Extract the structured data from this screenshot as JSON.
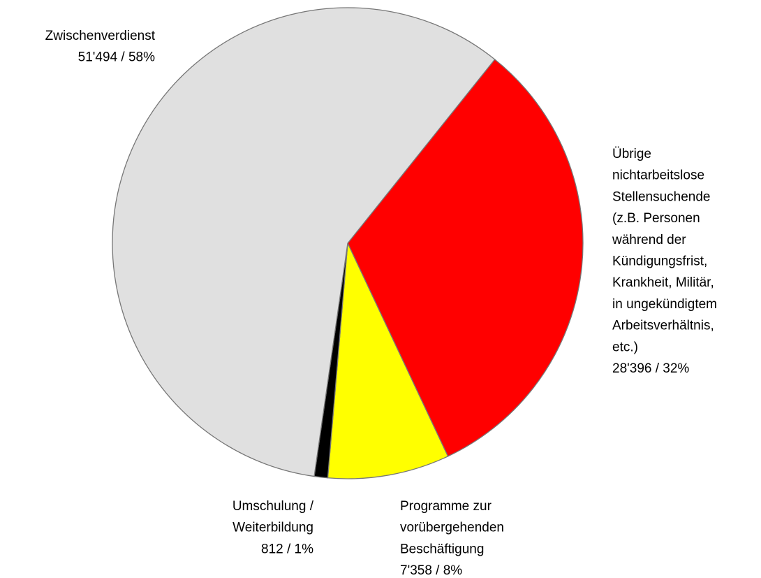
{
  "chart_data": {
    "type": "pie",
    "categories": [
      "Übrige\nnichtarbeitslose\nStellensuchende\n(z.B. Personen\nwährend der\nKündigungsfrist,\nKrankheit, Militär,\nin ungekündigtem\nArbeitsverhältnis,\netc.)",
      "Programme zur\nvorübergehenden\nBeschäftigung",
      "Umschulung /\nWeiterbildung",
      "Zwischenverdienst"
    ],
    "values": [
      28396,
      7358,
      812,
      51494
    ],
    "value_labels": [
      "28'396  / 32%",
      "7'358  / 8%",
      "812  / 1%",
      "51'494  / 58%"
    ],
    "colors": [
      "#ff0000",
      "#ffff00",
      "#000000",
      "#e0e0e0"
    ]
  }
}
